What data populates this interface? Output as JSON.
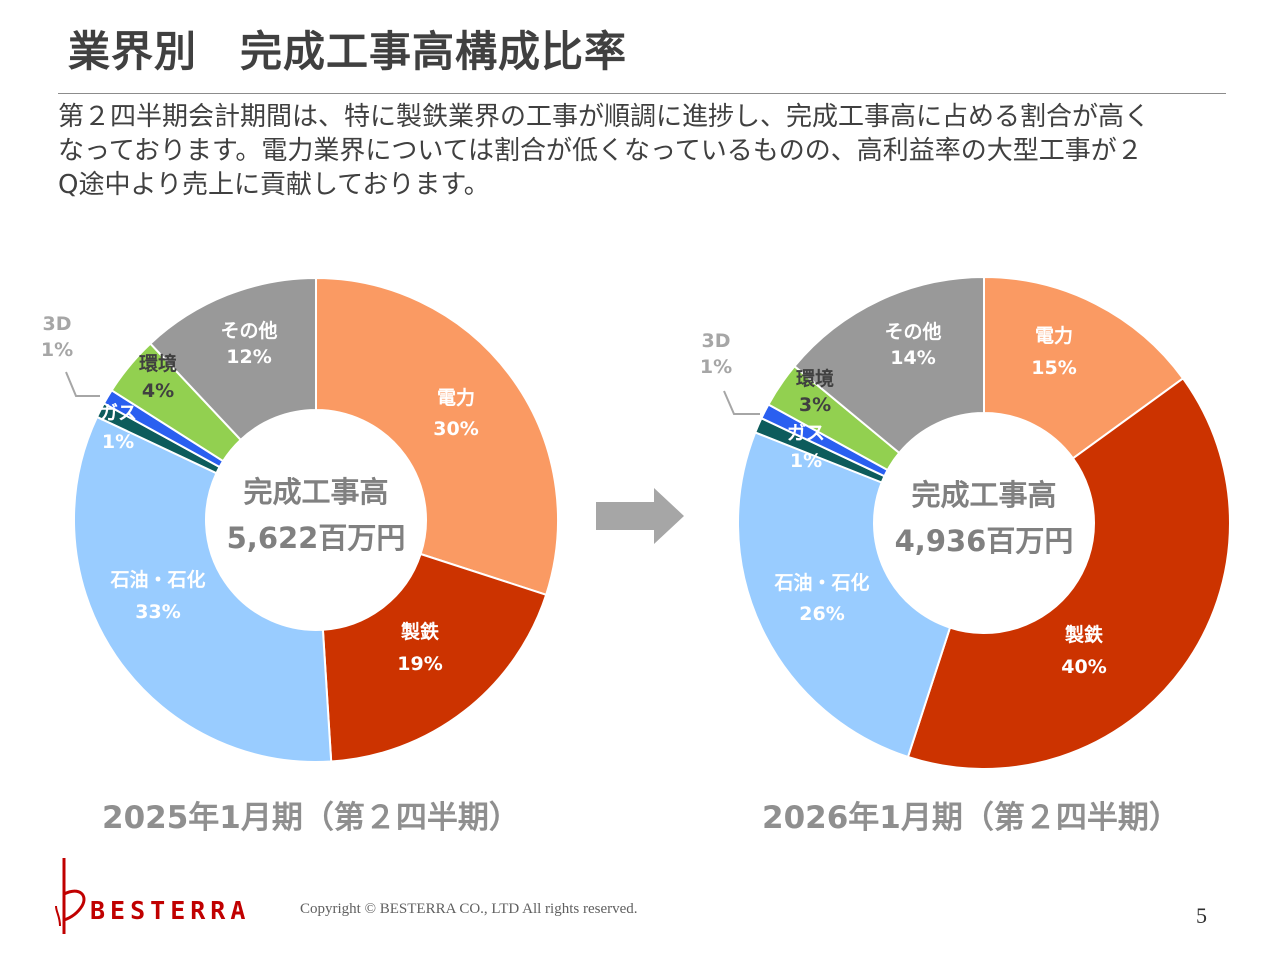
{
  "header": {
    "title": "業界別　完成工事高構成比率"
  },
  "description": {
    "lines": [
      "第２四半期会計期間は、特に製鉄業界の工事が順調に進捗し、完成工事高に占める割合が高く",
      "なっております。電力業界については割合が低くなっているものの、高利益率の大型工事が２",
      "Q途中より売上に貢献しております。"
    ]
  },
  "chart_data": [
    {
      "type": "pie",
      "caption": "2025年1月期（第２四半期）",
      "center_label": "完成工事高",
      "center_value": "5,622百万円",
      "slices": [
        {
          "name": "電力",
          "value": 30,
          "label": "30%",
          "color": "#fa9a63"
        },
        {
          "name": "製鉄",
          "value": 19,
          "label": "19%",
          "color": "#cc3300"
        },
        {
          "name": "石油・石化",
          "display_name": "石油・石化",
          "value": 33,
          "label": "33%",
          "color": "#99ccff"
        },
        {
          "name": "3D",
          "value": 1,
          "label": "1%",
          "color": "#0d5c5c"
        },
        {
          "name": "ガス",
          "value": 1,
          "label": "1%",
          "color": "#2a5ff0"
        },
        {
          "name": "環境",
          "value": 4,
          "label": "4%",
          "color": "#92d050"
        },
        {
          "name": "その他",
          "value": 12,
          "label": "12%",
          "color": "#999999"
        }
      ]
    },
    {
      "type": "pie",
      "caption": "2026年1月期（第２四半期）",
      "center_label": "完成工事高",
      "center_value": "4,936百万円",
      "slices": [
        {
          "name": "電力",
          "value": 15,
          "label": "15%",
          "color": "#fa9a63"
        },
        {
          "name": "製鉄",
          "value": 40,
          "label": "40%",
          "color": "#cc3300"
        },
        {
          "name": "石油・石化",
          "value": 26,
          "label": "26%",
          "color": "#99ccff"
        },
        {
          "name": "3D",
          "value": 1,
          "label": "1%",
          "color": "#0d5c5c"
        },
        {
          "name": "ガス",
          "value": 1,
          "label": "1%",
          "color": "#2a5ff0"
        },
        {
          "name": "環境",
          "value": 3,
          "label": "3%",
          "color": "#92d050"
        },
        {
          "name": "その他",
          "value": 14,
          "label": "14%",
          "color": "#999999"
        }
      ]
    }
  ],
  "footer": {
    "brand": "BESTERRA",
    "copyright": "Copyright © BESTERRA CO., LTD All rights reserved.",
    "page_number": "5"
  },
  "colors": {
    "text": "#404040",
    "caption": "#8f8f8f",
    "arrow": "#a6a6a6",
    "brand": "#c00000"
  },
  "icons": {
    "arrow": "right-arrow-icon",
    "logo": "besterra-logo-icon"
  }
}
